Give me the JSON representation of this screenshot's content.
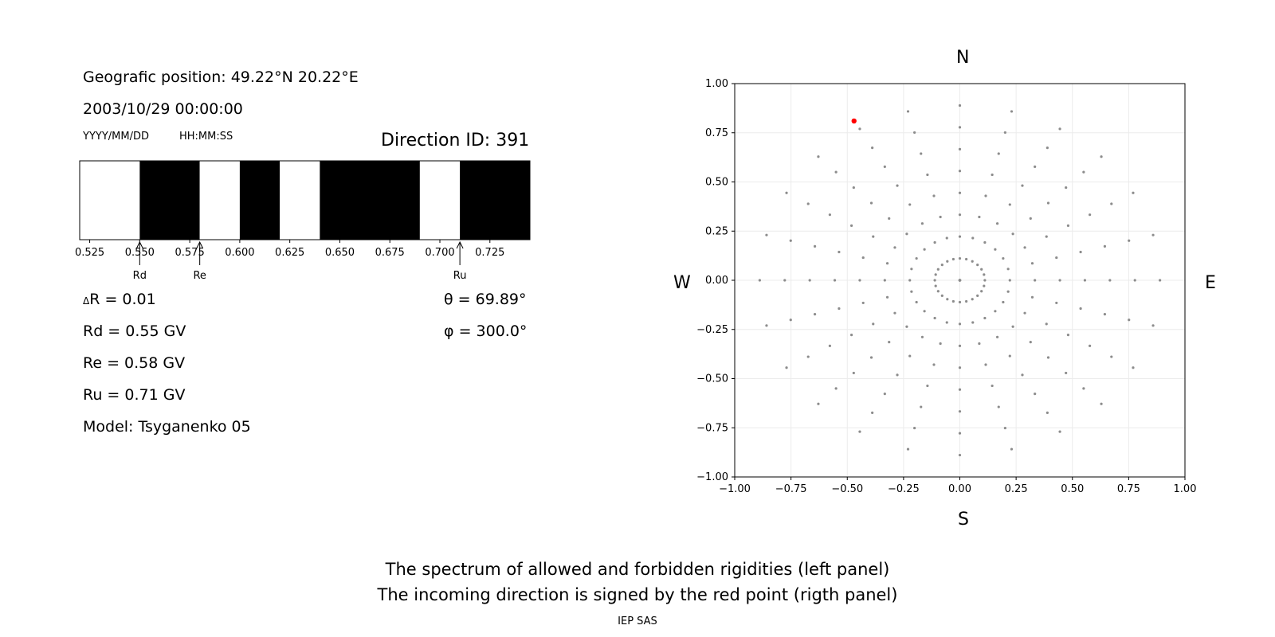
{
  "left_panel": {
    "geo_position": "Geografic position: 49.22°N 20.22°E",
    "datetime": "2003/10/29 00:00:00",
    "date_format": "YYYY/MM/DD",
    "time_format": "HH:MM:SS",
    "direction_id": "Direction ID: 391",
    "delta_r": "R = 0.01",
    "rd": "Rd = 0.55 GV",
    "re": "Re = 0.58 GV",
    "ru": "Ru = 0.71 GV",
    "model": "Model: Tsyganenko 05",
    "theta": "θ = 69.89°",
    "phi": "φ = 300.0°"
  },
  "right_panel": {
    "north": "N",
    "south": "S",
    "west": "W",
    "east": "E"
  },
  "caption": {
    "line1": "The spectrum of allowed and forbidden rigidities (left panel)",
    "line2": "The incoming direction is signed by the red point (rigth panel)",
    "credit": "IEP SAS"
  },
  "colors": {
    "forbidden": "#000000",
    "allowed": "#ffffff",
    "grid_points": "#8c8c8c",
    "direction_point": "#ff0000"
  },
  "chart_data": [
    {
      "type": "bar",
      "xlim": [
        0.52,
        0.745
      ],
      "x_ticks": [
        0.525,
        0.55,
        0.575,
        0.6,
        0.625,
        0.65,
        0.675,
        0.7,
        0.725
      ],
      "x_tick_labels": [
        "0.525",
        "0.550",
        "0.575",
        "0.600",
        "0.625",
        "0.650",
        "0.675",
        "0.700",
        "0.725"
      ],
      "segments": [
        {
          "from": 0.52,
          "to": 0.55,
          "state": "allowed"
        },
        {
          "from": 0.55,
          "to": 0.58,
          "state": "forbidden"
        },
        {
          "from": 0.58,
          "to": 0.6,
          "state": "allowed"
        },
        {
          "from": 0.6,
          "to": 0.62,
          "state": "forbidden"
        },
        {
          "from": 0.62,
          "to": 0.64,
          "state": "allowed"
        },
        {
          "from": 0.64,
          "to": 0.69,
          "state": "forbidden"
        },
        {
          "from": 0.69,
          "to": 0.71,
          "state": "allowed"
        },
        {
          "from": 0.71,
          "to": 0.745,
          "state": "forbidden"
        }
      ],
      "markers": [
        {
          "label": "Rd",
          "value": 0.55
        },
        {
          "label": "Re",
          "value": 0.58
        },
        {
          "label": "Ru",
          "value": 0.71
        }
      ]
    },
    {
      "type": "scatter",
      "xlim": [
        -1.0,
        1.0
      ],
      "ylim": [
        -1.0,
        1.0
      ],
      "grid": true,
      "x_ticks": [
        -1.0,
        -0.75,
        -0.5,
        -0.25,
        0.0,
        0.25,
        0.5,
        0.75,
        1.0
      ],
      "x_tick_labels": [
        "−1.00",
        "−0.75",
        "−0.50",
        "−0.25",
        "0.00",
        "0.25",
        "0.50",
        "0.75",
        "1.00"
      ],
      "y_ticks": [
        1.0,
        0.75,
        0.5,
        0.25,
        0.0,
        -0.25,
        -0.5,
        -0.75,
        -1.0
      ],
      "y_tick_labels": [
        "1.00",
        "0.75",
        "0.50",
        "0.25",
        "0.00",
        "−0.25",
        "−0.50",
        "−0.75",
        "−1.00"
      ],
      "grid_theta_step_deg": 10,
      "grid_theta_max_deg": 80,
      "grid_phi_step_deg": 15,
      "highlight_point": {
        "x": -0.47,
        "y": 0.81
      }
    }
  ]
}
